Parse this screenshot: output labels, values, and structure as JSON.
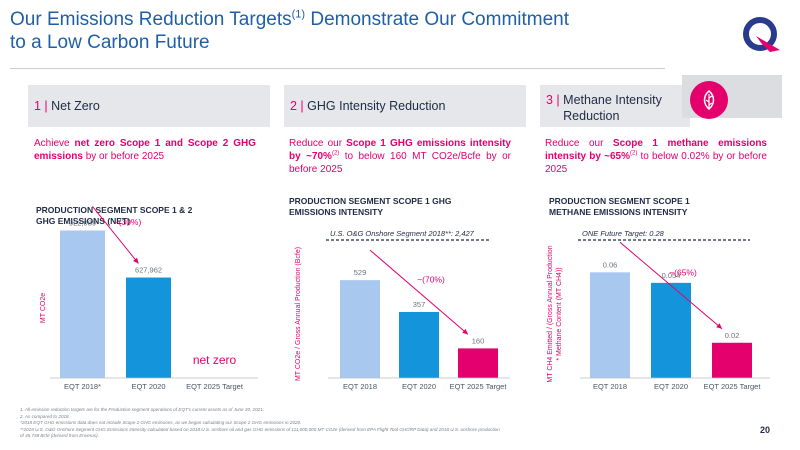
{
  "header": {
    "title_line1": "Our Emissions Reduction Targets",
    "title_sup": "(1)",
    "title_line1_end": " Demonstrate Our Commitment",
    "title_line2": "to a Low Carbon Future"
  },
  "pillars": [
    {
      "num": "1 | ",
      "label": "Net Zero"
    },
    {
      "num": "2 | ",
      "label": "GHG Intensity Reduction"
    },
    {
      "num": "3 | ",
      "label_line1": "Methane Intensity",
      "label_line2": "Reduction"
    }
  ],
  "descriptions": {
    "d1_pre": "Achieve ",
    "d1_bold": "net zero Scope 1 and Scope 2 GHG emissions",
    "d1_post": " by or before 2025",
    "d2_pre": "Reduce our ",
    "d2_bold": "Scope 1 GHG emissions intensity by ~70%",
    "d2_sup": "(2)",
    "d2_post": " to below 160 MT CO2e/Bcfe by or before 2025",
    "d3_pre": "Reduce our ",
    "d3_bold": "Scope 1 methane emissions intensity by ~65%",
    "d3_sup": "(2)",
    "d3_post": " to below 0.02% by or before 2025"
  },
  "chart_titles": {
    "c1_l1": "PRODUCTION SEGMENT SCOPE 1 & 2",
    "c1_l2": "GHG EMISSIONS (NET)",
    "c2_l1": "PRODUCTION SEGMENT SCOPE 1 GHG",
    "c2_l2": "EMISSIONS INTENSITY",
    "c3_l1": "PRODUCTION SEGMENT SCOPE 1",
    "c3_l2": "METHANE EMISSIONS INTENSITY"
  },
  "colors": {
    "accent": "#e4006d",
    "bar_light": "#a9c8f0",
    "bar_mid": "#1495db",
    "bar_target": "#e4006d",
    "title_blue": "#1e5fa8",
    "dark": "#1f2a44"
  },
  "icons": {
    "logo": "eqt-logo",
    "pillar3": "leaf-icon"
  },
  "chart_data": [
    {
      "type": "bar",
      "categories": [
        "EQT 2018*",
        "EQT 2020",
        "EQT 2025 Target"
      ],
      "values": [
        922039,
        627962,
        0
      ],
      "data_labels": [
        "922,039",
        "627,962",
        ""
      ],
      "target_text": "net zero",
      "ylabel": "MT CO2e",
      "annotation": "~(30%)",
      "ylim": [
        0,
        1000000
      ]
    },
    {
      "type": "bar",
      "categories": [
        "EQT 2018",
        "EQT 2020",
        "EQT 2025 Target"
      ],
      "values": [
        529,
        357,
        160
      ],
      "data_labels": [
        "529",
        "357",
        "160"
      ],
      "ylabel": "MT CO2e / Gross Annual Production (Bcfe)",
      "annotation": "~(70%)",
      "reference_line": {
        "label": "U.S. O&G Onshore Segment 2018**: 2,427"
      },
      "ylim": [
        0,
        800
      ]
    },
    {
      "type": "bar",
      "categories": [
        "EQT 2018",
        "EQT 2020",
        "EQT 2025 Target"
      ],
      "values": [
        0.06,
        0.054,
        0.02
      ],
      "data_labels": [
        "0.06",
        "0.054",
        "0.02"
      ],
      "ylabel_line1": "MT CH4 Emitted / (Gross Annual Production",
      "ylabel_line2": "* Methane Content (MT CH4))",
      "annotation": "~(65%)",
      "reference_line": {
        "label": "ONE Future Target: 0.28"
      },
      "ylim": [
        0,
        0.084
      ]
    }
  ],
  "footnotes": {
    "f1": "1.     All emission reduction targets are for the Production segment operations of EQT's current assets as of June 30, 2021.",
    "f2": "2.     As compared to 2018.",
    "f3": "*2018 EQT GHG emissions data does not include Scope 2 GHG emissions, as we began calculating our Scope 2 GHG emissions in 2020.",
    "f4": "**2018 U.S. O&G Onshore Segment GHG Emissions Intensity calculated based on 2018 U.S. onshore oil and gas GHG emissions of 111,000,000 MT CO2e (derived from EPA Flight Tool GHGRP Data) and 2018 U.S. onshore production",
    "f5": "of 45,738 Bcfe (derived from Enverus)."
  },
  "page": {
    "number": "20"
  }
}
